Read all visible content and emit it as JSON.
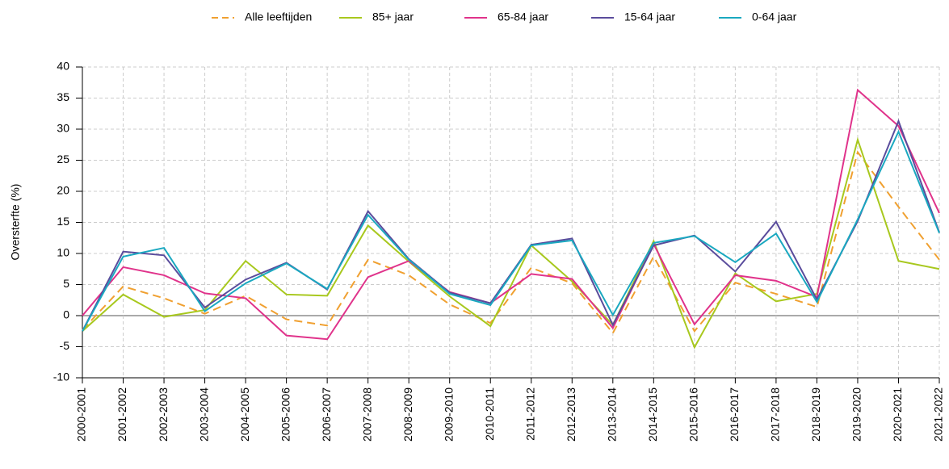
{
  "chart_data": {
    "type": "line",
    "y_label": "Oversterfte (%)",
    "categories": [
      "2000-2001",
      "2001-2002",
      "2002-2003",
      "2003-2004",
      "2004-2005",
      "2005-2006",
      "2006-2007",
      "2007-2008",
      "2008-2009",
      "2009-2010",
      "2010-2011",
      "2011-2012",
      "2012-2013",
      "2013-2014",
      "2014-2015",
      "2015-2016",
      "2016-2017",
      "2017-2018",
      "2018-2019",
      "2019-2020",
      "2020-2021",
      "2021-2022"
    ],
    "series": [
      {
        "name": "Alle leeftijden",
        "color": "#f0a030",
        "dashed": true,
        "values": [
          -2.3,
          4.7,
          2.8,
          0.3,
          3.2,
          -0.6,
          -1.6,
          9.0,
          6.5,
          1.8,
          -1.2,
          7.7,
          5.2,
          -2.8,
          9.5,
          -2.5,
          5.3,
          3.5,
          1.4,
          26.3,
          17.5,
          9.0
        ]
      },
      {
        "name": "85+ jaar",
        "color": "#a8c81e",
        "values": [
          -2.5,
          3.4,
          -0.2,
          0.9,
          8.8,
          3.4,
          3.2,
          14.5,
          8.7,
          3.1,
          -1.7,
          11.3,
          5.5,
          -1.5,
          12.0,
          -5.1,
          6.8,
          2.3,
          3.5,
          28.3,
          8.8,
          7.5
        ]
      },
      {
        "name": "65-84 jaar",
        "color": "#e0338b",
        "values": [
          0.0,
          7.8,
          6.5,
          3.6,
          2.8,
          -3.2,
          -3.8,
          6.2,
          8.8,
          3.8,
          2.0,
          6.7,
          5.9,
          -2.0,
          11.5,
          -1.4,
          6.5,
          5.6,
          3.0,
          36.3,
          30.5,
          16.5
        ]
      },
      {
        "name": "15-64 jaar",
        "color": "#5a4c9c",
        "values": [
          -2.5,
          10.3,
          9.7,
          1.3,
          5.8,
          8.5,
          4.2,
          16.8,
          9.1,
          3.7,
          2.0,
          11.4,
          12.4,
          -1.5,
          11.3,
          12.9,
          7.1,
          15.1,
          2.6,
          15.2,
          31.3,
          13.4
        ]
      },
      {
        "name": "0-64 jaar",
        "color": "#1aa8c0",
        "values": [
          -2.5,
          9.5,
          10.9,
          0.7,
          5.2,
          8.4,
          4.3,
          16.2,
          9.0,
          3.5,
          1.7,
          11.3,
          12.1,
          0.1,
          11.7,
          12.8,
          8.6,
          13.2,
          2.2,
          15.5,
          29.6,
          13.3
        ]
      }
    ],
    "ylim": [
      -10,
      40
    ],
    "yticks": [
      -10,
      -5,
      0,
      5,
      10,
      15,
      20,
      25,
      30,
      35,
      40
    ],
    "grid": true,
    "legend": "top"
  }
}
